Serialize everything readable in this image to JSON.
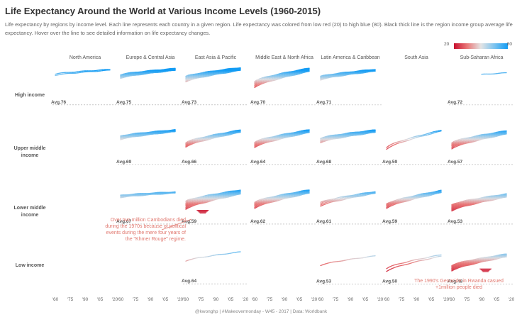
{
  "title": "Life Expectancy Around the World at Various Income Levels (1960-2015)",
  "subtitle": "Life expectancy by regions by income level. Each line represents each country in a given region. Life expectancy was colored from low red (20) to high blue (80). Black thick line is the region income group average life expectancy. Hover over the line to see detailed information on life expectancy changes.",
  "legend": {
    "min": "20",
    "max": "80"
  },
  "footer": "@kwonghp | #Makeovermonday - W45 - 2017 | Data: Worldbank",
  "colors": {
    "low": "#c8102e",
    "mid": "#e4e4e4",
    "high": "#139cf4",
    "avg_line": "#aaaaaa"
  },
  "chart_data": {
    "type": "line",
    "regions": [
      "North America",
      "Europe & Central Asia",
      "East Asia & Pacific",
      "Middle East & North Africa",
      "Latin America & Caribbean",
      "South Asia",
      "Sub-Saharan Africa"
    ],
    "income_groups": [
      "High income",
      "Upper middle income",
      "Lower middle income",
      "Low income"
    ],
    "x_tick_labels": [
      "'60",
      "'75",
      "'90",
      "'05",
      "'20"
    ],
    "xlim": [
      1960,
      2020
    ],
    "ylim": [
      20,
      85
    ],
    "panels": [
      {
        "row": 0,
        "col": 0,
        "avg": "Avg.76",
        "start": 70,
        "end": 81,
        "spread": 3,
        "n": 2
      },
      {
        "row": 0,
        "col": 1,
        "avg": "Avg.75",
        "start": 66,
        "end": 82,
        "spread": 8,
        "n": 14
      },
      {
        "row": 0,
        "col": 2,
        "avg": "Avg.73",
        "start": 60,
        "end": 83,
        "spread": 12,
        "n": 10
      },
      {
        "row": 0,
        "col": 3,
        "avg": "Avg.70",
        "start": 48,
        "end": 81,
        "spread": 14,
        "n": 8
      },
      {
        "row": 0,
        "col": 4,
        "avg": "Avg.71",
        "start": 62,
        "end": 80,
        "spread": 8,
        "n": 10
      },
      {
        "row": 0,
        "col": 6,
        "avg": "Avg.72",
        "start": 64,
        "end": 74,
        "spread": 2,
        "n": 1,
        "from": 1990
      },
      {
        "row": 1,
        "col": 1,
        "avg": "Avg.69",
        "start": 62,
        "end": 78,
        "spread": 8,
        "n": 12
      },
      {
        "row": 1,
        "col": 2,
        "avg": "Avg.66",
        "start": 46,
        "end": 77,
        "spread": 10,
        "n": 8
      },
      {
        "row": 1,
        "col": 3,
        "avg": "Avg.64",
        "start": 46,
        "end": 77,
        "spread": 12,
        "n": 8
      },
      {
        "row": 1,
        "col": 4,
        "avg": "Avg.68",
        "start": 56,
        "end": 77,
        "spread": 10,
        "n": 14
      },
      {
        "row": 1,
        "col": 5,
        "avg": "Avg.59",
        "start": 38,
        "end": 78,
        "spread": 4,
        "n": 2
      },
      {
        "row": 1,
        "col": 6,
        "avg": "Avg.57",
        "start": 44,
        "end": 74,
        "spread": 14,
        "n": 8
      },
      {
        "row": 2,
        "col": 1,
        "avg": "Avg.67",
        "start": 64,
        "end": 73,
        "spread": 5,
        "n": 5
      },
      {
        "row": 2,
        "col": 2,
        "avg": "Avg.59",
        "start": 44,
        "end": 74,
        "spread": 18,
        "n": 10
      },
      {
        "row": 2,
        "col": 3,
        "avg": "Avg.62",
        "start": 44,
        "end": 75,
        "spread": 14,
        "n": 8
      },
      {
        "row": 2,
        "col": 4,
        "avg": "Avg.61",
        "start": 46,
        "end": 73,
        "spread": 8,
        "n": 4
      },
      {
        "row": 2,
        "col": 5,
        "avg": "Avg.59",
        "start": 42,
        "end": 75,
        "spread": 10,
        "n": 6
      },
      {
        "row": 2,
        "col": 6,
        "avg": "Avg.53",
        "start": 38,
        "end": 66,
        "spread": 14,
        "n": 12
      },
      {
        "row": 3,
        "col": 2,
        "avg": "Avg.64",
        "start": 52,
        "end": 72,
        "spread": 2,
        "n": 1
      },
      {
        "row": 3,
        "col": 4,
        "avg": "Avg.53",
        "start": 42,
        "end": 63,
        "spread": 2,
        "n": 1
      },
      {
        "row": 3,
        "col": 5,
        "avg": "Avg.50",
        "start": 32,
        "end": 64,
        "spread": 6,
        "n": 2
      },
      {
        "row": 3,
        "col": 6,
        "avg": "Avg.48",
        "start": 36,
        "end": 64,
        "spread": 12,
        "n": 14
      }
    ],
    "annotations": [
      {
        "text": [
          "Over two million Cambodians died",
          "during the 1970s because of political",
          "events during the mere four years of",
          "the \"Khmer Rouge\" regime."
        ],
        "row": 2,
        "col": 2
      },
      {
        "text": [
          "The 1990's Genocide in Rwanda casued",
          "+1million people died"
        ],
        "row": 3,
        "col": 6
      }
    ]
  }
}
